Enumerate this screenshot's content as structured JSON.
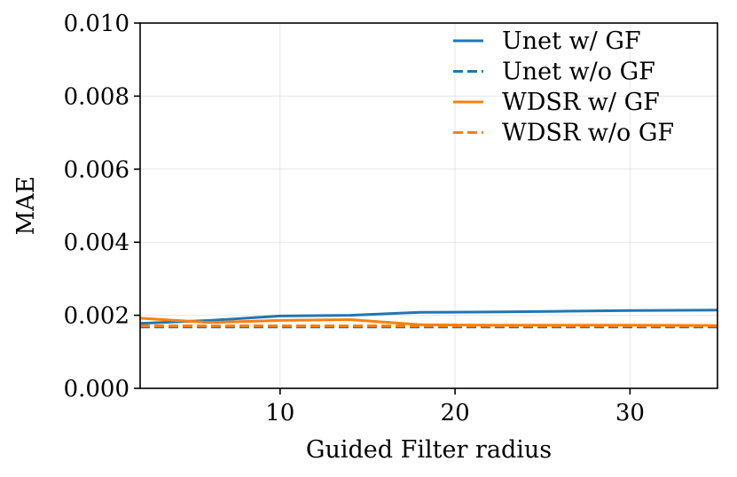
{
  "chart_data": {
    "type": "line",
    "title": "",
    "xlabel": "Guided Filter radius",
    "ylabel": "MAE",
    "xlim": [
      2,
      35
    ],
    "ylim": [
      0,
      0.01
    ],
    "xticks": [
      10,
      20,
      30
    ],
    "xtick_labels": [
      "10",
      "20",
      "30"
    ],
    "yticks": [
      0,
      0.002,
      0.004,
      0.006,
      0.008,
      0.01
    ],
    "ytick_labels": [
      "0.000",
      "0.002",
      "0.004",
      "0.006",
      "0.008",
      "0.010"
    ],
    "grid": true,
    "legend_position": "top-right",
    "series": [
      {
        "name": "Unet w/ GF",
        "color": "#1f77b4",
        "dash": "solid",
        "x": [
          2,
          6,
          10,
          14,
          18,
          22,
          26,
          30,
          35
        ],
        "y": [
          0.00178,
          0.00186,
          0.00198,
          0.002,
          0.00208,
          0.00209,
          0.00211,
          0.00213,
          0.00214
        ]
      },
      {
        "name": "Unet w/o GF",
        "color": "#1f77b4",
        "dash": "dashed",
        "x": [
          2,
          35
        ],
        "y": [
          0.00168,
          0.00168
        ]
      },
      {
        "name": "WDSR w/ GF",
        "color": "#ff7f0e",
        "dash": "solid",
        "x": [
          2,
          6,
          10,
          14,
          18,
          22,
          26,
          30,
          35
        ],
        "y": [
          0.00192,
          0.0018,
          0.00186,
          0.00188,
          0.00174,
          0.00173,
          0.00173,
          0.00173,
          0.00172
        ]
      },
      {
        "name": "WDSR w/o GF",
        "color": "#ff7f0e",
        "dash": "dashed",
        "x": [
          2,
          35
        ],
        "y": [
          0.00171,
          0.00171
        ]
      }
    ]
  }
}
